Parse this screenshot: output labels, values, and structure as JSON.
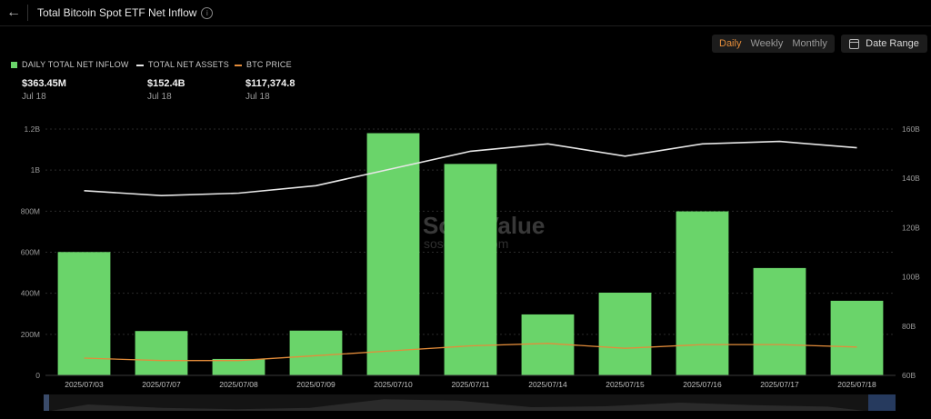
{
  "header": {
    "title": "Total Bitcoin Spot ETF Net Inflow",
    "info_icon": "i"
  },
  "controls": {
    "periods": [
      "Daily",
      "Weekly",
      "Monthly"
    ],
    "active_period": "Daily",
    "date_range_label": "Date Range"
  },
  "legend": [
    {
      "label": "DAILY TOTAL NET INFLOW",
      "value": "$363.45M",
      "date": "Jul 18",
      "color": "#6ad46a"
    },
    {
      "label": "TOTAL NET ASSETS",
      "value": "$152.4B",
      "date": "Jul 18",
      "color": "#e6e6e6"
    },
    {
      "label": "BTC PRICE",
      "value": "$117,374.8",
      "date": "Jul 18",
      "color": "#e38c3a"
    }
  ],
  "watermark": {
    "line1": "SoSoValue",
    "line2": "sosovalue.com"
  },
  "chart_data": {
    "type": "bar",
    "categories": [
      "2025/07/03",
      "2025/07/07",
      "2025/07/08",
      "2025/07/09",
      "2025/07/10",
      "2025/07/11",
      "2025/07/14",
      "2025/07/15",
      "2025/07/16",
      "2025/07/17",
      "2025/07/18"
    ],
    "series": [
      {
        "name": "DAILY TOTAL NET INFLOW",
        "type": "bar",
        "axis": "left",
        "color": "#6ad46a",
        "values": [
          601,
          216,
          80,
          218,
          1180,
          1030,
          297,
          403,
          799,
          523,
          363.45
        ]
      },
      {
        "name": "TOTAL NET ASSETS",
        "type": "line",
        "axis": "right",
        "color": "#e6e6e6",
        "values": [
          135,
          133,
          134,
          137,
          144,
          151,
          154,
          149,
          154,
          155,
          152.4
        ]
      },
      {
        "name": "BTC PRICE",
        "type": "line",
        "axis": "right",
        "color": "#e38c3a",
        "values": [
          67,
          66,
          66,
          68,
          70,
          72,
          73,
          71,
          72.5,
          72.5,
          71.5
        ]
      }
    ],
    "y_left": {
      "min": 0,
      "max": 1200,
      "ticks": [
        0,
        200,
        400,
        600,
        800,
        1000,
        1200
      ],
      "tick_labels": [
        "0",
        "200M",
        "400M",
        "600M",
        "800M",
        "1B",
        "1.2B"
      ]
    },
    "y_right": {
      "min": 60,
      "max": 160,
      "ticks": [
        60,
        80,
        100,
        120,
        140,
        160
      ],
      "tick_labels": [
        "60B",
        "80B",
        "100B",
        "120B",
        "140B",
        "160B"
      ]
    },
    "grid": true,
    "legend_position": "top-left"
  }
}
